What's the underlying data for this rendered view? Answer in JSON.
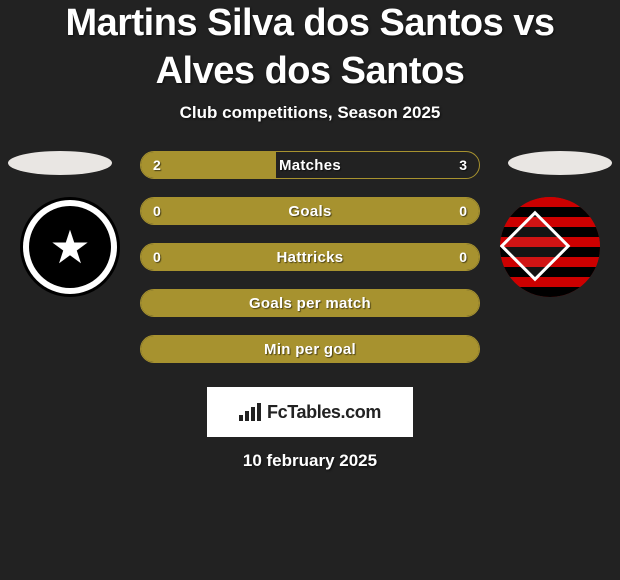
{
  "title": "Martins Silva dos Santos vs Alves dos Santos",
  "subtitle": "Club competitions, Season 2025",
  "footer_date": "10 february 2025",
  "brand": "FcTables.com",
  "colors": {
    "background": "#222222",
    "bar_fill": "#a7922f",
    "bar_border": "#a7922f",
    "pill": "#e9e6e3"
  },
  "bars": [
    {
      "label": "Matches",
      "left": "2",
      "right": "3",
      "split": 0.4
    },
    {
      "label": "Goals",
      "left": "0",
      "right": "0",
      "split": 1.0
    },
    {
      "label": "Hattricks",
      "left": "0",
      "right": "0",
      "split": 1.0
    },
    {
      "label": "Goals per match",
      "left": "",
      "right": "",
      "split": 1.0
    },
    {
      "label": "Min per goal",
      "left": "",
      "right": "",
      "split": 1.0
    }
  ]
}
